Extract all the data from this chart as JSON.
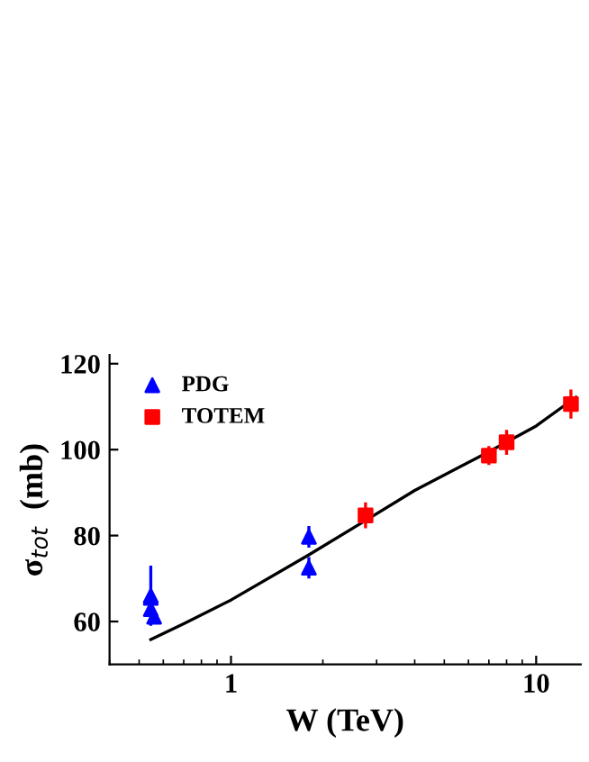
{
  "chart_data": {
    "type": "scatter",
    "xlabel": "W (TeV)",
    "ylabel": "σ$_{tot}$  (mb)",
    "log": "x",
    "xlim": [
      0.4,
      14
    ],
    "xticks": [
      1,
      10
    ],
    "ylim": [
      50,
      122
    ],
    "yticks": [
      60,
      80,
      100,
      120
    ],
    "grid": false,
    "legend": "top left",
    "series": [
      {
        "name": "PDG",
        "marker": "triangle",
        "color": "#0000ff",
        "x": [
          0.546,
          0.546,
          0.546,
          0.56,
          1.8,
          1.8
        ],
        "values": [
          66,
          65.5,
          62.9,
          61.1,
          79.7,
          72.5
        ],
        "errors": [
          [
            59,
            73
          ],
          1.5,
          1.5,
          1.5,
          2.5,
          2.5
        ]
      },
      {
        "name": "TOTEM",
        "marker": "square",
        "color": "#ff0000",
        "x": [
          2.76,
          7,
          8,
          13
        ],
        "values": [
          84.7,
          98.6,
          101.7,
          110.6
        ],
        "errors": [
          3,
          2.2,
          2.9,
          3.4
        ]
      },
      {
        "type": "line",
        "marker": "none",
        "color": "#000000",
        "x": [
          0.546,
          0.7,
          1,
          1.8,
          2.76,
          4,
          7,
          10,
          13.5
        ],
        "values": [
          55.8,
          59.5,
          65,
          75.5,
          83.5,
          90.5,
          99.5,
          105.5,
          112.2
        ]
      }
    ]
  }
}
